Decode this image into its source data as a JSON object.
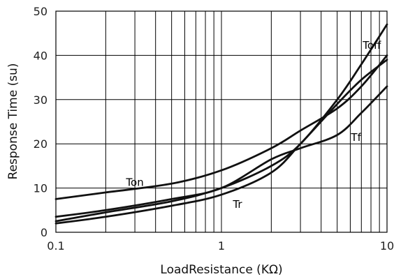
{
  "chart_data": {
    "type": "line",
    "title": "",
    "xlabel": "LoadResistance (KΩ)",
    "ylabel": "Response Time (su)",
    "xscale": "log",
    "xlim": [
      0.1,
      10
    ],
    "ylim": [
      0,
      50
    ],
    "grid": true,
    "x_ticks": [
      0.1,
      1,
      10
    ],
    "x_tick_labels": [
      "0.1",
      "1",
      "10"
    ],
    "y_ticks": [
      0,
      10,
      20,
      30,
      40,
      50
    ],
    "y_tick_labels": [
      "0",
      "10",
      "20",
      "30",
      "40",
      "50"
    ],
    "series": [
      {
        "name": "Ton",
        "x": [
          0.1,
          0.2,
          0.5,
          1,
          2,
          3,
          5,
          7,
          10
        ],
        "y": [
          7.5,
          9,
          11,
          14,
          19,
          23,
          28,
          33,
          40
        ]
      },
      {
        "name": "Toff",
        "x": [
          0.1,
          0.2,
          0.5,
          1,
          2,
          3,
          5,
          7,
          10
        ],
        "y": [
          2.5,
          4.5,
          7,
          10,
          15,
          20,
          30,
          38,
          47
        ]
      },
      {
        "name": "Tr",
        "x": [
          0.1,
          0.2,
          0.5,
          1,
          2,
          3,
          5,
          7,
          10
        ],
        "y": [
          2,
          3.5,
          6,
          8.5,
          13.5,
          20,
          29,
          34.5,
          39
        ]
      },
      {
        "name": "Tf",
        "x": [
          0.1,
          0.2,
          0.5,
          1,
          2,
          3,
          5,
          7,
          10
        ],
        "y": [
          3.5,
          5,
          7.5,
          10,
          16.5,
          19,
          22,
          27,
          33
        ]
      }
    ]
  }
}
